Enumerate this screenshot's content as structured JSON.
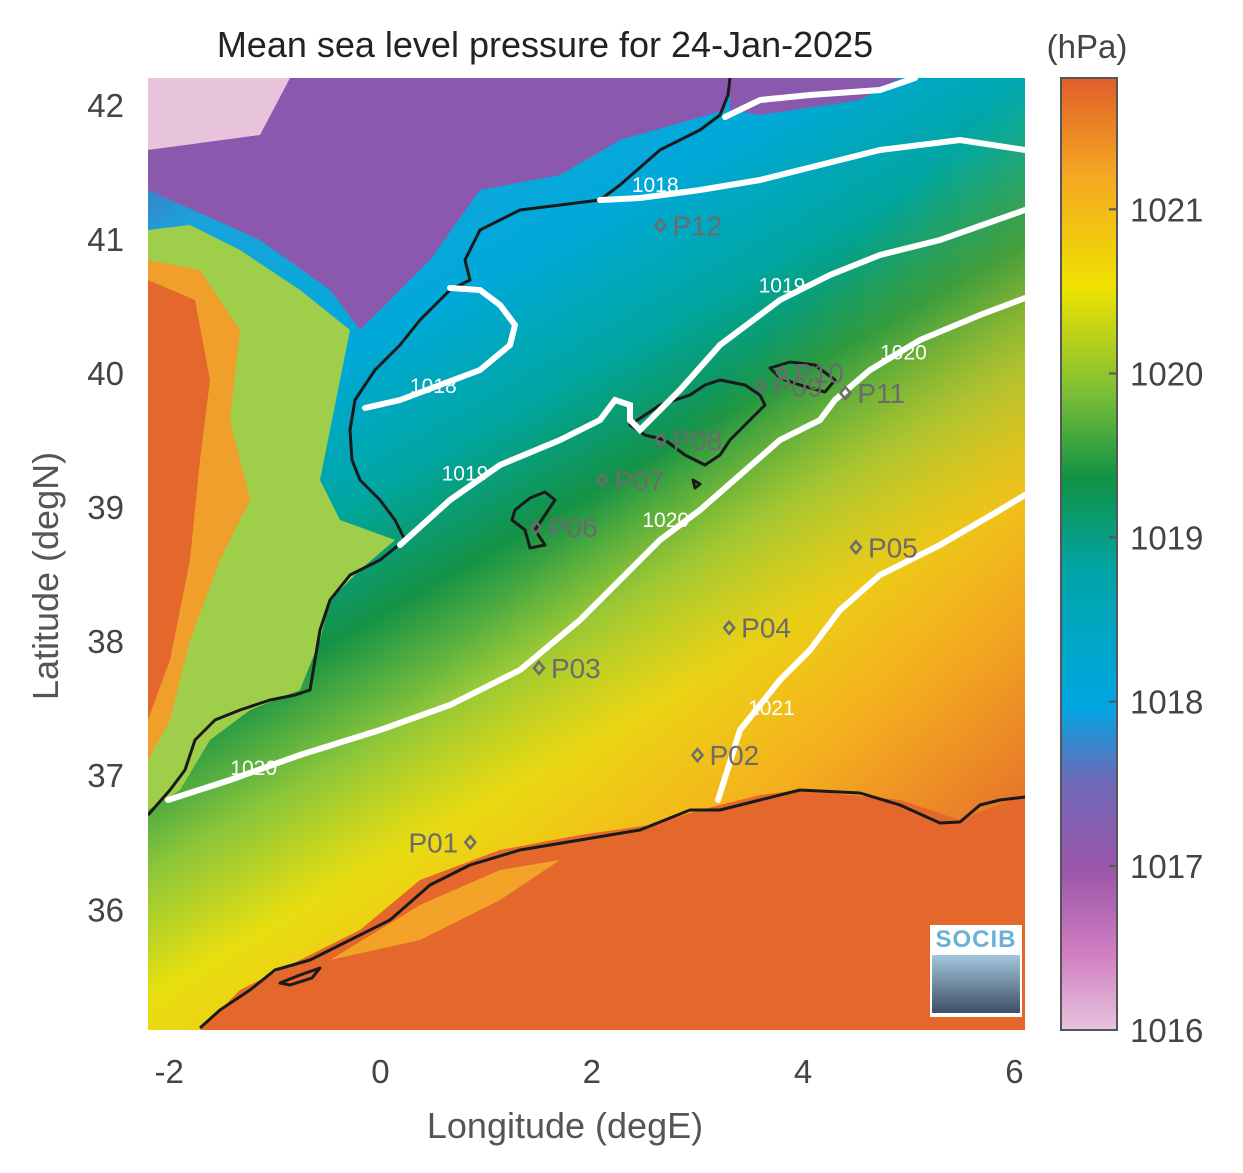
{
  "title": "Mean sea level pressure for 24-Jan-2025",
  "xlabel": "Longitude (degE)",
  "ylabel": "Latitude (degN)",
  "colorbar": {
    "unit": "(hPa)",
    "ticks": [
      "1016",
      "1017",
      "1018",
      "1019",
      "1020",
      "1021"
    ],
    "range": [
      1016,
      1021.8
    ],
    "colors": [
      "#e6c4dc",
      "#c65bb0",
      "#8a4ea8",
      "#00a6e2",
      "#00a5a8",
      "#119245",
      "#7dbf36",
      "#efe200",
      "#f5a623",
      "#e05e2a"
    ]
  },
  "map": {
    "lon_range": [
      -2.2,
      6.1
    ],
    "lat_range": [
      35.1,
      42.2
    ],
    "xticks": [
      "-2",
      "0",
      "2",
      "4",
      "6"
    ],
    "yticks": [
      "36",
      "37",
      "38",
      "39",
      "40",
      "41",
      "42"
    ],
    "contour_color": "#ffffff",
    "coastline_color": "#1a1a1a"
  },
  "contour_labels": [
    {
      "text": "1018",
      "lon": 2.6,
      "lat": 41.35
    },
    {
      "text": "1018",
      "lon": 0.5,
      "lat": 39.85
    },
    {
      "text": "1019",
      "lon": 0.8,
      "lat": 39.2
    },
    {
      "text": "1019",
      "lon": 3.8,
      "lat": 40.6
    },
    {
      "text": "1020",
      "lon": 2.7,
      "lat": 38.85
    },
    {
      "text": "1020",
      "lon": 4.95,
      "lat": 40.1
    },
    {
      "text": "1020",
      "lon": -1.2,
      "lat": 37.0
    },
    {
      "text": "1021",
      "lon": 3.7,
      "lat": 37.45
    }
  ],
  "points": [
    {
      "label": "P01",
      "lon": 0.85,
      "lat": 36.5
    },
    {
      "label": "P02",
      "lon": 3.0,
      "lat": 37.15
    },
    {
      "label": "P03",
      "lon": 1.5,
      "lat": 37.8
    },
    {
      "label": "P04",
      "lon": 3.3,
      "lat": 38.1
    },
    {
      "label": "P05",
      "lon": 4.5,
      "lat": 38.7
    },
    {
      "label": "P06",
      "lon": 1.47,
      "lat": 38.85
    },
    {
      "label": "P07",
      "lon": 2.1,
      "lat": 39.2
    },
    {
      "label": "P08",
      "lon": 2.65,
      "lat": 39.5
    },
    {
      "label": "P09",
      "lon": 3.6,
      "lat": 39.9
    },
    {
      "label": "P10",
      "lon": 3.8,
      "lat": 40.0
    },
    {
      "label": "P11",
      "lon": 4.4,
      "lat": 39.85
    },
    {
      "label": "P12",
      "lon": 2.65,
      "lat": 41.1
    }
  ],
  "logo": {
    "text": "SOCIB"
  }
}
